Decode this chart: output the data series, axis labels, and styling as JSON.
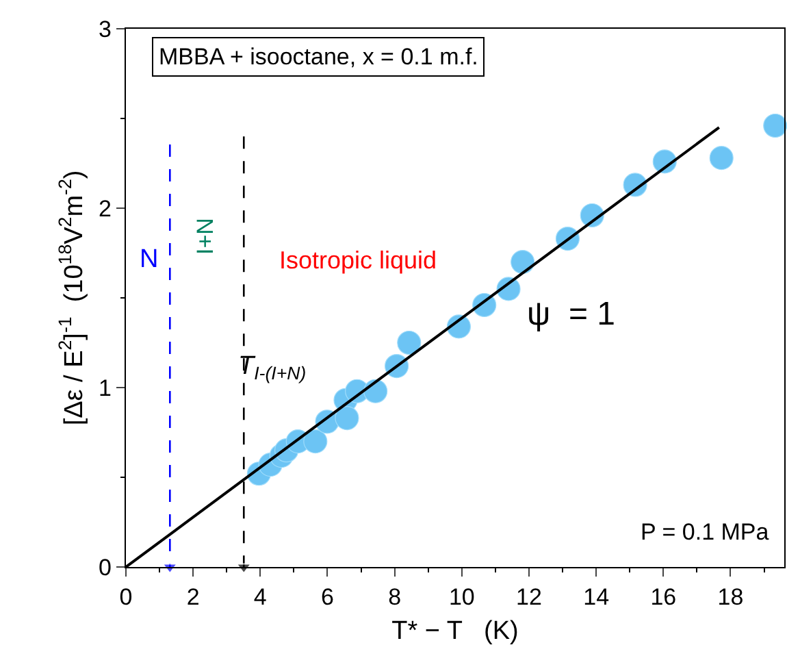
{
  "chart_data": {
    "type": "scatter",
    "xlabel": "T* − T   (K)",
    "ylabel": "[Δε / E$^{2}$]$^{-1}$  (10$^{18}$V$^{2}$m$^{-2}$)",
    "x": [
      3.96,
      4.3,
      4.63,
      4.78,
      5.12,
      5.64,
      5.99,
      6.54,
      6.58,
      6.88,
      7.43,
      8.06,
      8.43,
      9.91,
      10.67,
      11.39,
      11.81,
      13.15,
      13.88,
      15.16,
      16.04,
      17.73,
      19.33
    ],
    "series": [
      {
        "color": "#6cc4f4",
        "marker": "circle",
        "values": [
          0.52,
          0.57,
          0.62,
          0.65,
          0.7,
          0.7,
          0.81,
          0.93,
          0.83,
          0.98,
          0.98,
          1.12,
          1.25,
          1.34,
          1.46,
          1.55,
          1.7,
          1.83,
          1.96,
          2.13,
          2.26,
          2.28,
          2.46
        ]
      },
      {
        "type": "line",
        "color": "#000000",
        "line_style": "solid",
        "x": [
          0,
          17.66
        ],
        "values": [
          0,
          2.45
        ]
      }
    ],
    "ref_lines": [
      {
        "axis": "x",
        "value": 1.31,
        "label": "N",
        "color": "#0000ff",
        "line_style": "dashed"
      },
      {
        "axis": "x",
        "value": 3.51,
        "label": "T$_{I-(I+N)}$",
        "color": "#000000",
        "line_style": "dashed"
      }
    ],
    "annotations": [
      "MBBA + isooctane, x = 0.1 m.f.",
      "I+N",
      "Isotropic liquid",
      "ψ  = 1",
      "P = 0.1 MPa"
    ],
    "xlim": [
      0,
      19.6
    ],
    "ylim": [
      0,
      3
    ],
    "xticks": [
      0,
      2,
      4,
      6,
      8,
      10,
      12,
      14,
      16,
      18
    ],
    "yticks": [
      0,
      1,
      2,
      3
    ]
  }
}
